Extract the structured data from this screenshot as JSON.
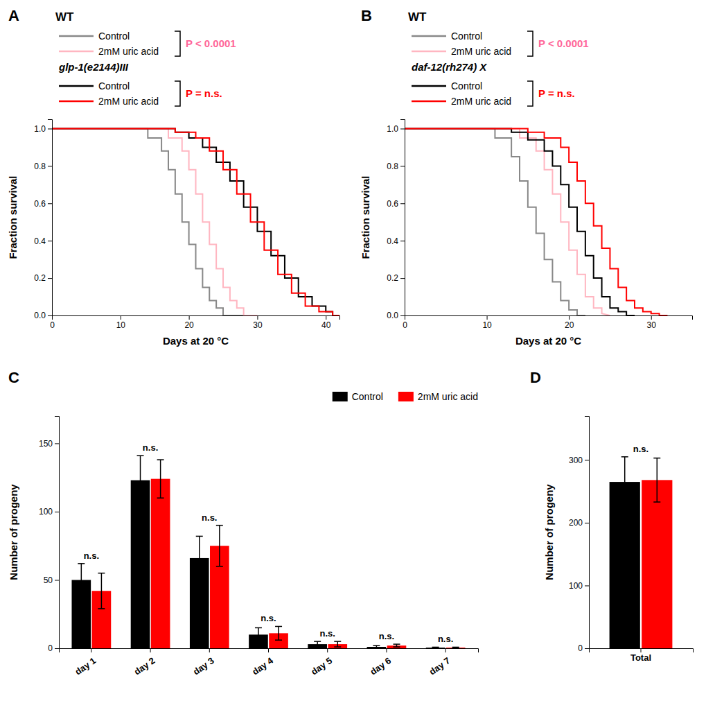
{
  "chart_data": [
    {
      "type": "line",
      "title": "A",
      "legend_titles": [
        "WT",
        "glp-1(e2144)III"
      ],
      "annotations": [
        {
          "text": "P < 0.0001",
          "color": "#FF6699"
        },
        {
          "text": "P = n.s.",
          "color": "#FF0000"
        }
      ],
      "xlabel": "Days at 20 °C",
      "ylabel": "Fraction survival",
      "xlim": [
        0,
        42
      ],
      "ylim": [
        0,
        1.05
      ],
      "xticks": [
        0,
        10,
        20,
        30,
        40
      ],
      "yticks": [
        {
          "value": 0.0,
          "label": "0.0"
        },
        {
          "value": 0.2,
          "label": "0.2"
        },
        {
          "value": 0.4,
          "label": "0.4"
        },
        {
          "value": 0.6,
          "label": "0.6"
        },
        {
          "value": 0.8,
          "label": "0.8"
        },
        {
          "value": 1.0,
          "label": "1.0"
        }
      ],
      "grid": false,
      "series": [
        {
          "name": "Control",
          "color": "#888888",
          "x": [
            0,
            14,
            14,
            16,
            16,
            17,
            17,
            18,
            18,
            19,
            19,
            20,
            20,
            21,
            21,
            22,
            22,
            23,
            23,
            24,
            24,
            25,
            25,
            28
          ],
          "values": [
            1.0,
            1.0,
            0.95,
            0.95,
            0.88,
            0.88,
            0.78,
            0.78,
            0.65,
            0.65,
            0.5,
            0.5,
            0.38,
            0.38,
            0.25,
            0.25,
            0.15,
            0.15,
            0.08,
            0.08,
            0.04,
            0.04,
            0.0,
            0.0
          ]
        },
        {
          "name": "2mM uric acid",
          "color": "#FFB6C1",
          "x": [
            0,
            17,
            17,
            19,
            19,
            20,
            20,
            21,
            21,
            22,
            22,
            23,
            23,
            24,
            24,
            25,
            25,
            26,
            26,
            27,
            27,
            28,
            28,
            30
          ],
          "values": [
            1.0,
            1.0,
            0.95,
            0.95,
            0.88,
            0.88,
            0.78,
            0.78,
            0.65,
            0.65,
            0.5,
            0.5,
            0.38,
            0.38,
            0.25,
            0.25,
            0.15,
            0.15,
            0.08,
            0.08,
            0.04,
            0.04,
            0.0,
            0.0
          ]
        },
        {
          "name": "Control",
          "color": "#000000",
          "x": [
            0,
            18,
            18,
            20,
            20,
            22,
            22,
            24,
            24,
            26,
            26,
            28,
            28,
            30,
            30,
            32,
            32,
            34,
            34,
            36,
            36,
            38,
            38,
            40,
            40,
            41,
            41,
            42
          ],
          "values": [
            1.0,
            1.0,
            0.98,
            0.98,
            0.95,
            0.95,
            0.9,
            0.9,
            0.82,
            0.82,
            0.72,
            0.72,
            0.58,
            0.58,
            0.45,
            0.45,
            0.32,
            0.32,
            0.2,
            0.2,
            0.1,
            0.1,
            0.05,
            0.05,
            0.02,
            0.02,
            0.0,
            0.0
          ]
        },
        {
          "name": "2mM uric acid",
          "color": "#FF0000",
          "x": [
            0,
            18,
            18,
            21,
            21,
            23,
            23,
            25,
            25,
            27,
            27,
            29,
            29,
            31,
            31,
            33,
            33,
            35,
            35,
            37,
            37,
            39,
            39,
            41,
            41,
            42
          ],
          "values": [
            1.0,
            1.0,
            0.98,
            0.98,
            0.95,
            0.95,
            0.88,
            0.88,
            0.78,
            0.78,
            0.65,
            0.65,
            0.5,
            0.5,
            0.35,
            0.35,
            0.22,
            0.22,
            0.12,
            0.12,
            0.05,
            0.05,
            0.02,
            0.02,
            0.0,
            0.0
          ]
        }
      ]
    },
    {
      "type": "line",
      "title": "B",
      "legend_titles": [
        "WT",
        "daf-12(rh274) X"
      ],
      "annotations": [
        {
          "text": "P < 0.0001",
          "color": "#FF6699"
        },
        {
          "text": "P = n.s.",
          "color": "#FF0000"
        }
      ],
      "xlabel": "Days at 20 °C",
      "ylabel": "Fraction survival",
      "xlim": [
        0,
        35
      ],
      "ylim": [
        0,
        1.05
      ],
      "xticks": [
        0,
        10,
        20,
        30
      ],
      "yticks": [
        {
          "value": 0.0,
          "label": "0.0"
        },
        {
          "value": 0.2,
          "label": "0.2"
        },
        {
          "value": 0.4,
          "label": "0.4"
        },
        {
          "value": 0.6,
          "label": "0.6"
        },
        {
          "value": 0.8,
          "label": "0.8"
        },
        {
          "value": 1.0,
          "label": "1.0"
        }
      ],
      "grid": false,
      "series": [
        {
          "name": "Control",
          "color": "#888888",
          "x": [
            0,
            11,
            11,
            13,
            13,
            14,
            14,
            15,
            15,
            16,
            16,
            17,
            17,
            18,
            18,
            19,
            19,
            20,
            20,
            21,
            21,
            22
          ],
          "values": [
            1.0,
            1.0,
            0.95,
            0.95,
            0.85,
            0.85,
            0.72,
            0.72,
            0.58,
            0.58,
            0.44,
            0.44,
            0.3,
            0.3,
            0.18,
            0.18,
            0.08,
            0.08,
            0.03,
            0.03,
            0.0,
            0.0
          ]
        },
        {
          "name": "2mM uric acid",
          "color": "#FFB6C1",
          "x": [
            0,
            14,
            14,
            16,
            16,
            17,
            17,
            18,
            18,
            19,
            19,
            20,
            20,
            21,
            21,
            22,
            22,
            23,
            23,
            24,
            24,
            25
          ],
          "values": [
            1.0,
            1.0,
            0.95,
            0.95,
            0.88,
            0.88,
            0.78,
            0.78,
            0.65,
            0.65,
            0.5,
            0.5,
            0.35,
            0.35,
            0.22,
            0.22,
            0.1,
            0.1,
            0.04,
            0.04,
            0.01,
            0.0
          ]
        },
        {
          "name": "Control",
          "color": "#000000",
          "x": [
            0,
            13,
            13,
            15,
            15,
            17,
            17,
            18,
            18,
            19,
            19,
            20,
            20,
            21,
            21,
            22,
            22,
            23,
            23,
            24,
            24,
            25,
            25,
            26,
            26,
            27,
            27,
            28
          ],
          "values": [
            1.0,
            1.0,
            0.98,
            0.98,
            0.94,
            0.94,
            0.88,
            0.88,
            0.8,
            0.8,
            0.7,
            0.7,
            0.58,
            0.58,
            0.45,
            0.45,
            0.32,
            0.32,
            0.2,
            0.2,
            0.1,
            0.1,
            0.04,
            0.04,
            0.02,
            0.02,
            0.0,
            0.0
          ]
        },
        {
          "name": "2mM uric acid",
          "color": "#FF0000",
          "x": [
            0,
            15,
            15,
            17,
            17,
            19,
            19,
            20,
            20,
            21,
            21,
            22,
            22,
            23,
            23,
            24,
            24,
            25,
            25,
            26,
            26,
            27,
            27,
            28,
            28,
            29,
            29,
            30,
            30,
            31,
            31,
            32
          ],
          "values": [
            1.0,
            1.0,
            0.98,
            0.98,
            0.95,
            0.95,
            0.9,
            0.9,
            0.82,
            0.82,
            0.72,
            0.72,
            0.6,
            0.6,
            0.48,
            0.48,
            0.36,
            0.36,
            0.25,
            0.25,
            0.15,
            0.15,
            0.08,
            0.08,
            0.04,
            0.04,
            0.02,
            0.02,
            0.01,
            0.01,
            0.0,
            0.0
          ]
        }
      ]
    },
    {
      "type": "bar",
      "title": "C",
      "categories": [
        "day 1",
        "day 2",
        "day 3",
        "day 4",
        "day 5",
        "day 6",
        "day 7"
      ],
      "ylabel": "Number of progeny",
      "ylim": [
        0,
        170
      ],
      "yticks": [
        0,
        50,
        100,
        150
      ],
      "grid": false,
      "legend": "upper right",
      "annotations": [
        "n.s.",
        "n.s.",
        "n.s.",
        "n.s.",
        "n.s.",
        "n.s.",
        "n.s."
      ],
      "series": [
        {
          "name": "Control",
          "color": "#000000",
          "values": [
            50,
            123,
            66,
            10,
            3,
            1,
            0.5
          ],
          "errors": [
            12,
            18,
            16,
            5,
            2,
            1,
            0.3
          ]
        },
        {
          "name": "2mM uric acid",
          "color": "#FF0000",
          "values": [
            42,
            124,
            75,
            11,
            3,
            2,
            0.5
          ],
          "errors": [
            13,
            14,
            15,
            5,
            2,
            1,
            0.3
          ]
        }
      ]
    },
    {
      "type": "bar",
      "title": "D",
      "categories": [
        "Total"
      ],
      "ylabel": "Number of progeny",
      "ylim": [
        0,
        370
      ],
      "yticks": [
        0,
        100,
        200,
        300
      ],
      "grid": false,
      "annotations": [
        "n.s."
      ],
      "series": [
        {
          "color": "#000000",
          "values": [
            265
          ],
          "errors": [
            40
          ]
        },
        {
          "color": "#FF0000",
          "values": [
            268
          ],
          "errors": [
            35
          ]
        }
      ]
    }
  ]
}
